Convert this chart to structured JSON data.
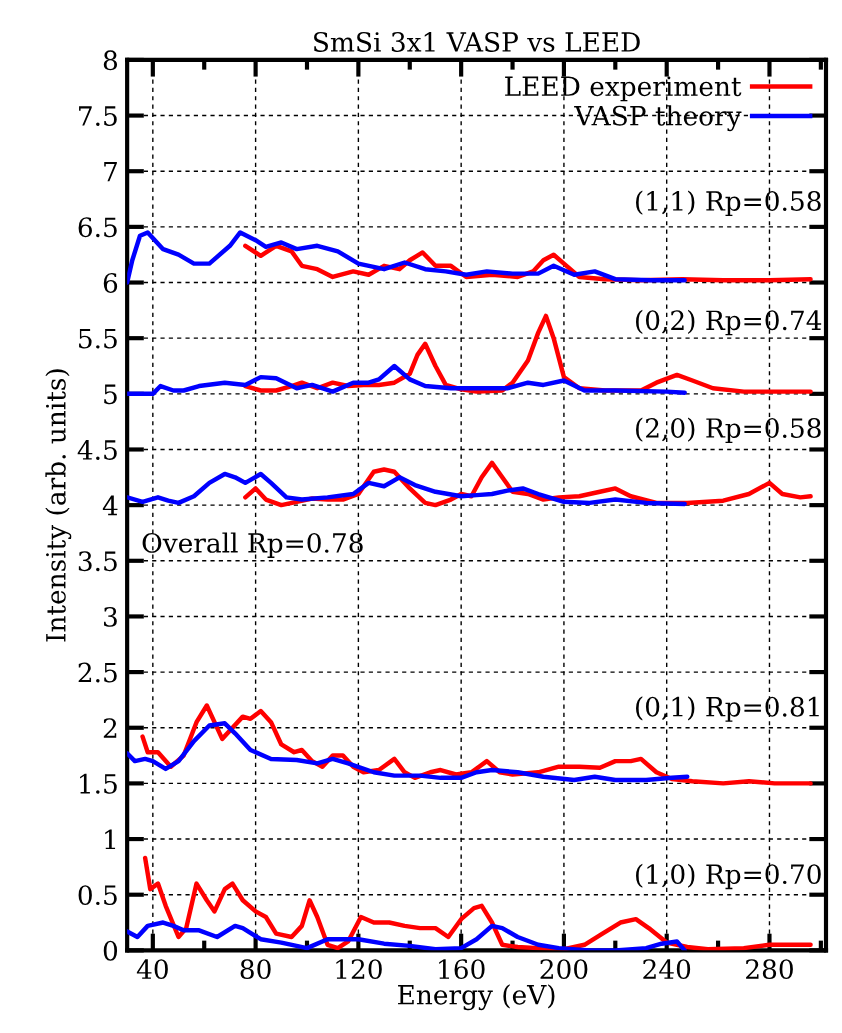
{
  "chart_data": {
    "type": "line",
    "title": "SmSi 3x1 VASP vs LEED",
    "xlabel": "Energy (eV)",
    "ylabel": "Intensity (arb. units)",
    "xlim": [
      30,
      302
    ],
    "ylim": [
      0,
      8
    ],
    "xticks": [
      40,
      {
        "value": 60,
        "label": null
      },
      80,
      {
        "value": 100,
        "label": null
      },
      120,
      {
        "value": 140,
        "label": null
      },
      160,
      {
        "value": 180,
        "label": null
      },
      200,
      {
        "value": 220,
        "label": null
      },
      240,
      {
        "value": 260,
        "label": null
      },
      280,
      {
        "value": 300,
        "label": null
      }
    ],
    "yticks": [
      0,
      0.5,
      1,
      1.5,
      2,
      2.5,
      3,
      3.5,
      4,
      4.5,
      5,
      5.5,
      6,
      6.5,
      7,
      7.5,
      8
    ],
    "grid": true,
    "legend": "top right",
    "line_style": "solid",
    "marker": "none",
    "series": [
      {
        "name": "LEED experiment",
        "color": "#ff0000",
        "x": [
          76,
          82,
          88,
          94,
          98,
          104,
          110,
          118,
          124,
          130,
          136,
          140,
          145,
          150,
          156,
          162,
          172,
          182,
          188,
          192,
          196,
          200,
          206,
          216,
          230,
          246,
          262,
          280,
          296
        ],
        "values": [
          6.33,
          6.24,
          6.33,
          6.28,
          6.15,
          6.12,
          6.05,
          6.1,
          6.07,
          6.15,
          6.12,
          6.2,
          6.27,
          6.15,
          6.15,
          6.05,
          6.07,
          6.05,
          6.1,
          6.2,
          6.25,
          6.17,
          6.05,
          6.03,
          6.02,
          6.03,
          6.02,
          6.02,
          6.03
        ]
      },
      {
        "name": "VASP theory",
        "color": "#0000ff",
        "x": [
          30,
          32,
          35,
          38,
          44,
          50,
          56,
          62,
          70,
          74,
          80,
          84,
          90,
          96,
          104,
          112,
          120,
          130,
          138,
          146,
          154,
          162,
          170,
          180,
          190,
          196,
          204,
          212,
          220,
          234,
          247
        ],
        "values": [
          6.0,
          6.2,
          6.42,
          6.45,
          6.3,
          6.25,
          6.17,
          6.17,
          6.33,
          6.45,
          6.38,
          6.32,
          6.36,
          6.3,
          6.33,
          6.28,
          6.17,
          6.12,
          6.18,
          6.12,
          6.1,
          6.07,
          6.1,
          6.08,
          6.08,
          6.15,
          6.07,
          6.1,
          6.03,
          6.02,
          6.02
        ]
      },
      {
        "color": "#ff0000",
        "x": [
          76,
          82,
          88,
          94,
          98,
          104,
          110,
          116,
          122,
          128,
          134,
          140,
          143,
          146,
          150,
          154,
          160,
          166,
          176,
          180,
          186,
          190,
          193,
          196,
          200,
          206,
          216,
          230,
          236,
          244,
          250,
          258,
          270,
          296
        ],
        "values": [
          5.07,
          5.03,
          5.03,
          5.07,
          5.1,
          5.05,
          5.1,
          5.07,
          5.08,
          5.08,
          5.1,
          5.18,
          5.35,
          5.45,
          5.25,
          5.08,
          5.04,
          5.02,
          5.03,
          5.1,
          5.3,
          5.55,
          5.7,
          5.5,
          5.15,
          5.05,
          5.03,
          5.03,
          5.1,
          5.17,
          5.12,
          5.05,
          5.02,
          5.02
        ]
      },
      {
        "color": "#0000ff",
        "x": [
          30,
          40,
          43,
          48,
          52,
          58,
          68,
          76,
          82,
          88,
          96,
          102,
          110,
          118,
          124,
          128,
          134,
          140,
          146,
          156,
          170,
          178,
          186,
          192,
          200,
          208,
          220,
          240,
          247
        ],
        "values": [
          5.0,
          5.0,
          5.07,
          5.03,
          5.03,
          5.07,
          5.1,
          5.08,
          5.15,
          5.14,
          5.05,
          5.08,
          5.02,
          5.1,
          5.1,
          5.13,
          5.25,
          5.13,
          5.07,
          5.05,
          5.05,
          5.05,
          5.1,
          5.08,
          5.12,
          5.03,
          5.03,
          5.02,
          5.01
        ]
      },
      {
        "color": "#ff0000",
        "x": [
          76,
          80,
          84,
          90,
          96,
          102,
          108,
          114,
          120,
          126,
          130,
          134,
          140,
          146,
          150,
          156,
          160,
          164,
          168,
          172,
          176,
          180,
          186,
          192,
          198,
          206,
          214,
          220,
          226,
          236,
          248,
          262,
          272,
          280,
          285,
          292,
          296
        ],
        "values": [
          4.07,
          4.15,
          4.05,
          4.0,
          4.03,
          4.06,
          4.05,
          4.05,
          4.1,
          4.3,
          4.32,
          4.3,
          4.15,
          4.02,
          4.0,
          4.05,
          4.1,
          4.08,
          4.25,
          4.38,
          4.25,
          4.12,
          4.1,
          4.05,
          4.07,
          4.08,
          4.12,
          4.15,
          4.08,
          4.02,
          4.02,
          4.04,
          4.1,
          4.2,
          4.1,
          4.07,
          4.08
        ]
      },
      {
        "color": "#0000ff",
        "x": [
          30,
          36,
          42,
          46,
          50,
          56,
          62,
          68,
          72,
          76,
          82,
          86,
          92,
          98,
          108,
          118,
          124,
          130,
          136,
          142,
          150,
          160,
          166,
          172,
          178,
          184,
          190,
          200,
          210,
          220,
          232,
          247
        ],
        "values": [
          4.07,
          4.03,
          4.07,
          4.04,
          4.02,
          4.08,
          4.2,
          4.28,
          4.25,
          4.2,
          4.28,
          4.2,
          4.07,
          4.05,
          4.07,
          4.1,
          4.2,
          4.17,
          4.25,
          4.18,
          4.12,
          4.08,
          4.09,
          4.1,
          4.13,
          4.15,
          4.1,
          4.03,
          4.02,
          4.05,
          4.02,
          4.01
        ]
      },
      {
        "color": "#ff0000",
        "x": [
          36,
          38,
          42,
          47,
          52,
          57,
          61,
          64,
          67,
          71,
          75,
          78,
          82,
          86,
          90,
          95,
          98,
          102,
          106,
          110,
          114,
          118,
          122,
          128,
          134,
          138,
          142,
          148,
          152,
          158,
          164,
          170,
          175,
          180,
          190,
          198,
          206,
          214,
          220,
          226,
          230,
          236,
          242,
          250,
          262,
          272,
          282,
          296
        ],
        "values": [
          1.92,
          1.78,
          1.78,
          1.65,
          1.75,
          2.05,
          2.2,
          2.05,
          1.9,
          2.0,
          2.1,
          2.08,
          2.15,
          2.05,
          1.85,
          1.78,
          1.8,
          1.7,
          1.65,
          1.75,
          1.75,
          1.65,
          1.6,
          1.62,
          1.72,
          1.6,
          1.55,
          1.6,
          1.62,
          1.58,
          1.6,
          1.7,
          1.6,
          1.58,
          1.6,
          1.65,
          1.65,
          1.64,
          1.7,
          1.7,
          1.72,
          1.6,
          1.54,
          1.52,
          1.5,
          1.52,
          1.5,
          1.5
        ]
      },
      {
        "color": "#0000ff",
        "x": [
          30,
          33,
          37,
          40,
          45,
          50,
          56,
          62,
          68,
          72,
          78,
          86,
          96,
          104,
          110,
          116,
          126,
          134,
          144,
          152,
          160,
          166,
          172,
          182,
          192,
          204,
          212,
          220,
          232,
          242,
          248
        ],
        "values": [
          1.77,
          1.7,
          1.72,
          1.7,
          1.63,
          1.7,
          1.88,
          2.02,
          2.04,
          1.95,
          1.8,
          1.72,
          1.71,
          1.68,
          1.72,
          1.68,
          1.6,
          1.57,
          1.57,
          1.55,
          1.55,
          1.6,
          1.62,
          1.6,
          1.56,
          1.53,
          1.56,
          1.53,
          1.53,
          1.55,
          1.56
        ]
      },
      {
        "color": "#ff0000",
        "x": [
          37,
          39,
          42,
          45,
          50,
          53,
          57,
          61,
          64,
          68,
          71,
          75,
          80,
          84,
          88,
          94,
          98,
          101,
          104,
          108,
          112,
          116,
          121,
          126,
          132,
          138,
          144,
          150,
          155,
          160,
          165,
          168,
          172,
          176,
          182,
          190,
          200,
          208,
          215,
          222,
          228,
          233,
          240,
          248,
          256,
          270,
          280,
          296
        ],
        "values": [
          0.83,
          0.55,
          0.6,
          0.4,
          0.12,
          0.2,
          0.6,
          0.45,
          0.35,
          0.55,
          0.6,
          0.45,
          0.35,
          0.3,
          0.15,
          0.12,
          0.22,
          0.45,
          0.3,
          0.05,
          0.02,
          0.08,
          0.3,
          0.25,
          0.25,
          0.22,
          0.2,
          0.2,
          0.12,
          0.28,
          0.38,
          0.4,
          0.25,
          0.05,
          0.03,
          0.02,
          0.01,
          0.05,
          0.15,
          0.25,
          0.28,
          0.2,
          0.07,
          0.03,
          0.01,
          0.02,
          0.05,
          0.05
        ]
      },
      {
        "color": "#0000ff",
        "x": [
          30,
          34,
          38,
          44,
          48,
          52,
          58,
          65,
          72,
          75,
          82,
          90,
          100,
          108,
          112,
          120,
          130,
          140,
          150,
          160,
          166,
          172,
          176,
          182,
          190,
          198,
          210,
          220,
          232,
          238,
          244,
          247
        ],
        "values": [
          0.17,
          0.12,
          0.22,
          0.25,
          0.22,
          0.18,
          0.18,
          0.12,
          0.22,
          0.2,
          0.1,
          0.07,
          0.02,
          0.1,
          0.1,
          0.1,
          0.06,
          0.04,
          0.01,
          0.02,
          0.1,
          0.22,
          0.2,
          0.12,
          0.05,
          0.02,
          0.0,
          0.0,
          0.02,
          0.06,
          0.08,
          0.0
        ]
      }
    ],
    "annotations": [
      "(1,1) Rp=0.58",
      "(0,2) Rp=0.74",
      "(2,0) Rp=0.58",
      "Overall Rp=0.78",
      "(0,1) Rp=0.81",
      "(1,0) Rp=0.70"
    ]
  }
}
